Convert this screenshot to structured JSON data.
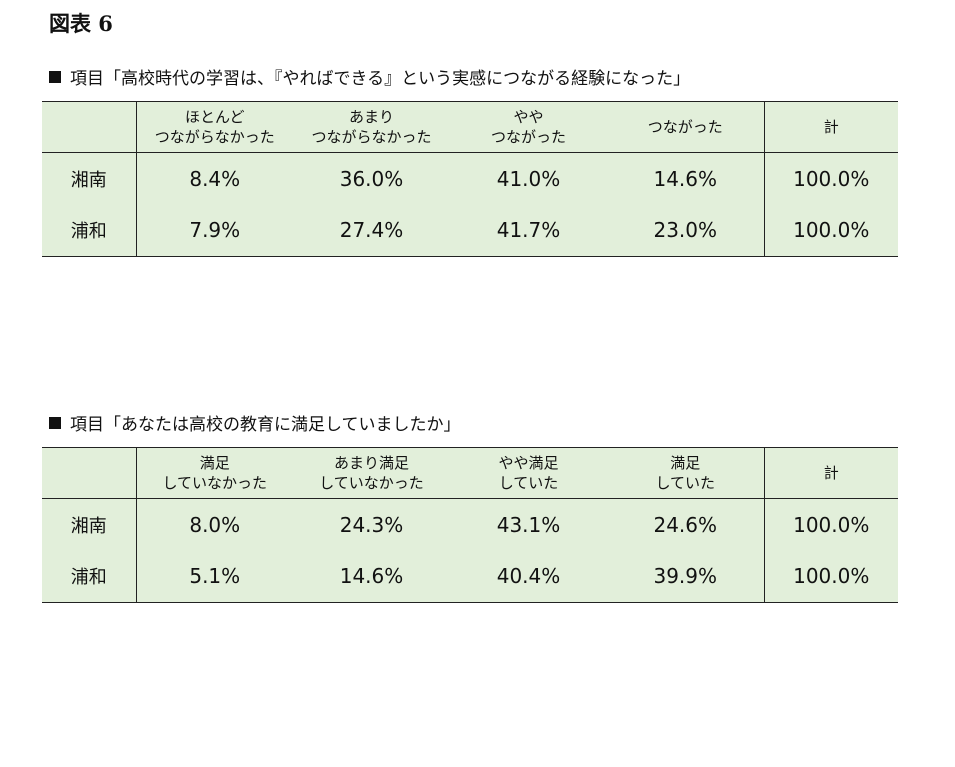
{
  "figure_title": "図表 6",
  "tables": [
    {
      "heading": "項目「高校時代の学習は、『やればできる』という実感につながる経験になった」",
      "columns": [
        [
          "ほとんど",
          "つながらなかった"
        ],
        [
          "あまり",
          "つながらなかった"
        ],
        [
          "やや",
          "つながった"
        ],
        [
          "つながった"
        ],
        [
          "計"
        ]
      ],
      "rows": [
        {
          "label": "湘南",
          "values": [
            "8.4%",
            "36.0%",
            "41.0%",
            "14.6%",
            "100.0%"
          ]
        },
        {
          "label": "浦和",
          "values": [
            "7.9%",
            "27.4%",
            "41.7%",
            "23.0%",
            "100.0%"
          ]
        }
      ]
    },
    {
      "heading": "項目「あなたは高校の教育に満足していましたか」",
      "columns": [
        [
          "満足",
          "していなかった"
        ],
        [
          "あまり満足",
          "していなかった"
        ],
        [
          "やや満足",
          "していた"
        ],
        [
          "満足",
          "していた"
        ],
        [
          "計"
        ]
      ],
      "rows": [
        {
          "label": "湘南",
          "values": [
            "8.0%",
            "24.3%",
            "43.1%",
            "24.6%",
            "100.0%"
          ]
        },
        {
          "label": "浦和",
          "values": [
            "5.1%",
            "14.6%",
            "40.4%",
            "39.9%",
            "100.0%"
          ]
        }
      ]
    }
  ],
  "colors": {
    "table_fill": "#e2efda",
    "rule": "#222222"
  }
}
